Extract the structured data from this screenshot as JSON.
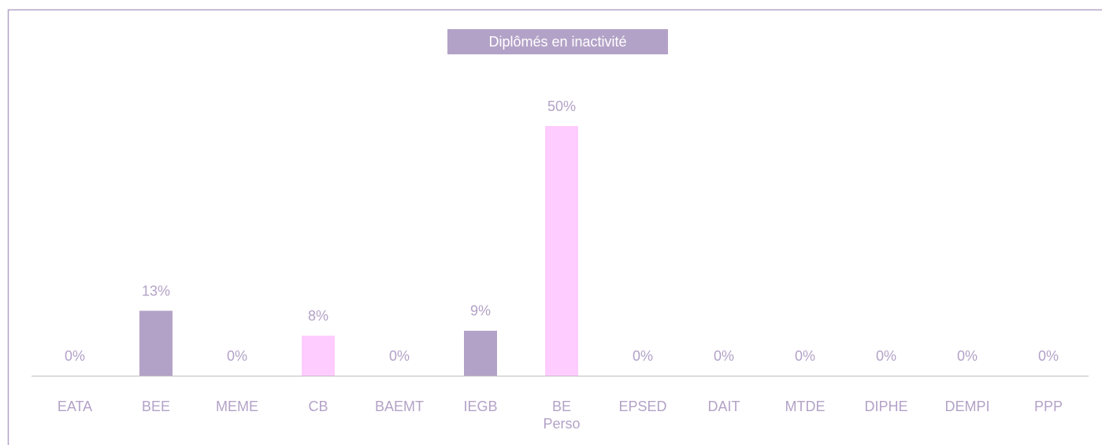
{
  "chart_data": {
    "type": "bar",
    "title": "Diplômés en inactivité",
    "categories": [
      "EATA",
      "BEE",
      "MEME",
      "CB",
      "BAEMT",
      "IEGB",
      "BE Perso",
      "EPSED",
      "DAIT",
      "MTDE",
      "DIPHE",
      "DEMPI",
      "PPP"
    ],
    "values": [
      0,
      13,
      0,
      8,
      0,
      9,
      50,
      0,
      0,
      0,
      0,
      0,
      0
    ],
    "value_labels": [
      "0%",
      "13%",
      "0%",
      "8%",
      "0%",
      "9%",
      "50%",
      "0%",
      "0%",
      "0%",
      "0%",
      "0%",
      "0%"
    ],
    "colors": [
      "#b3a2c7",
      "#b3a2c7",
      "#ffccff",
      "#ffccff",
      "#b3a2c7",
      "#b3a2c7",
      "#ffccff",
      "#b3a2c7",
      "#ffccff",
      "#b3a2c7",
      "#ffccff",
      "#b3a2c7",
      "#ffccff"
    ]
  }
}
